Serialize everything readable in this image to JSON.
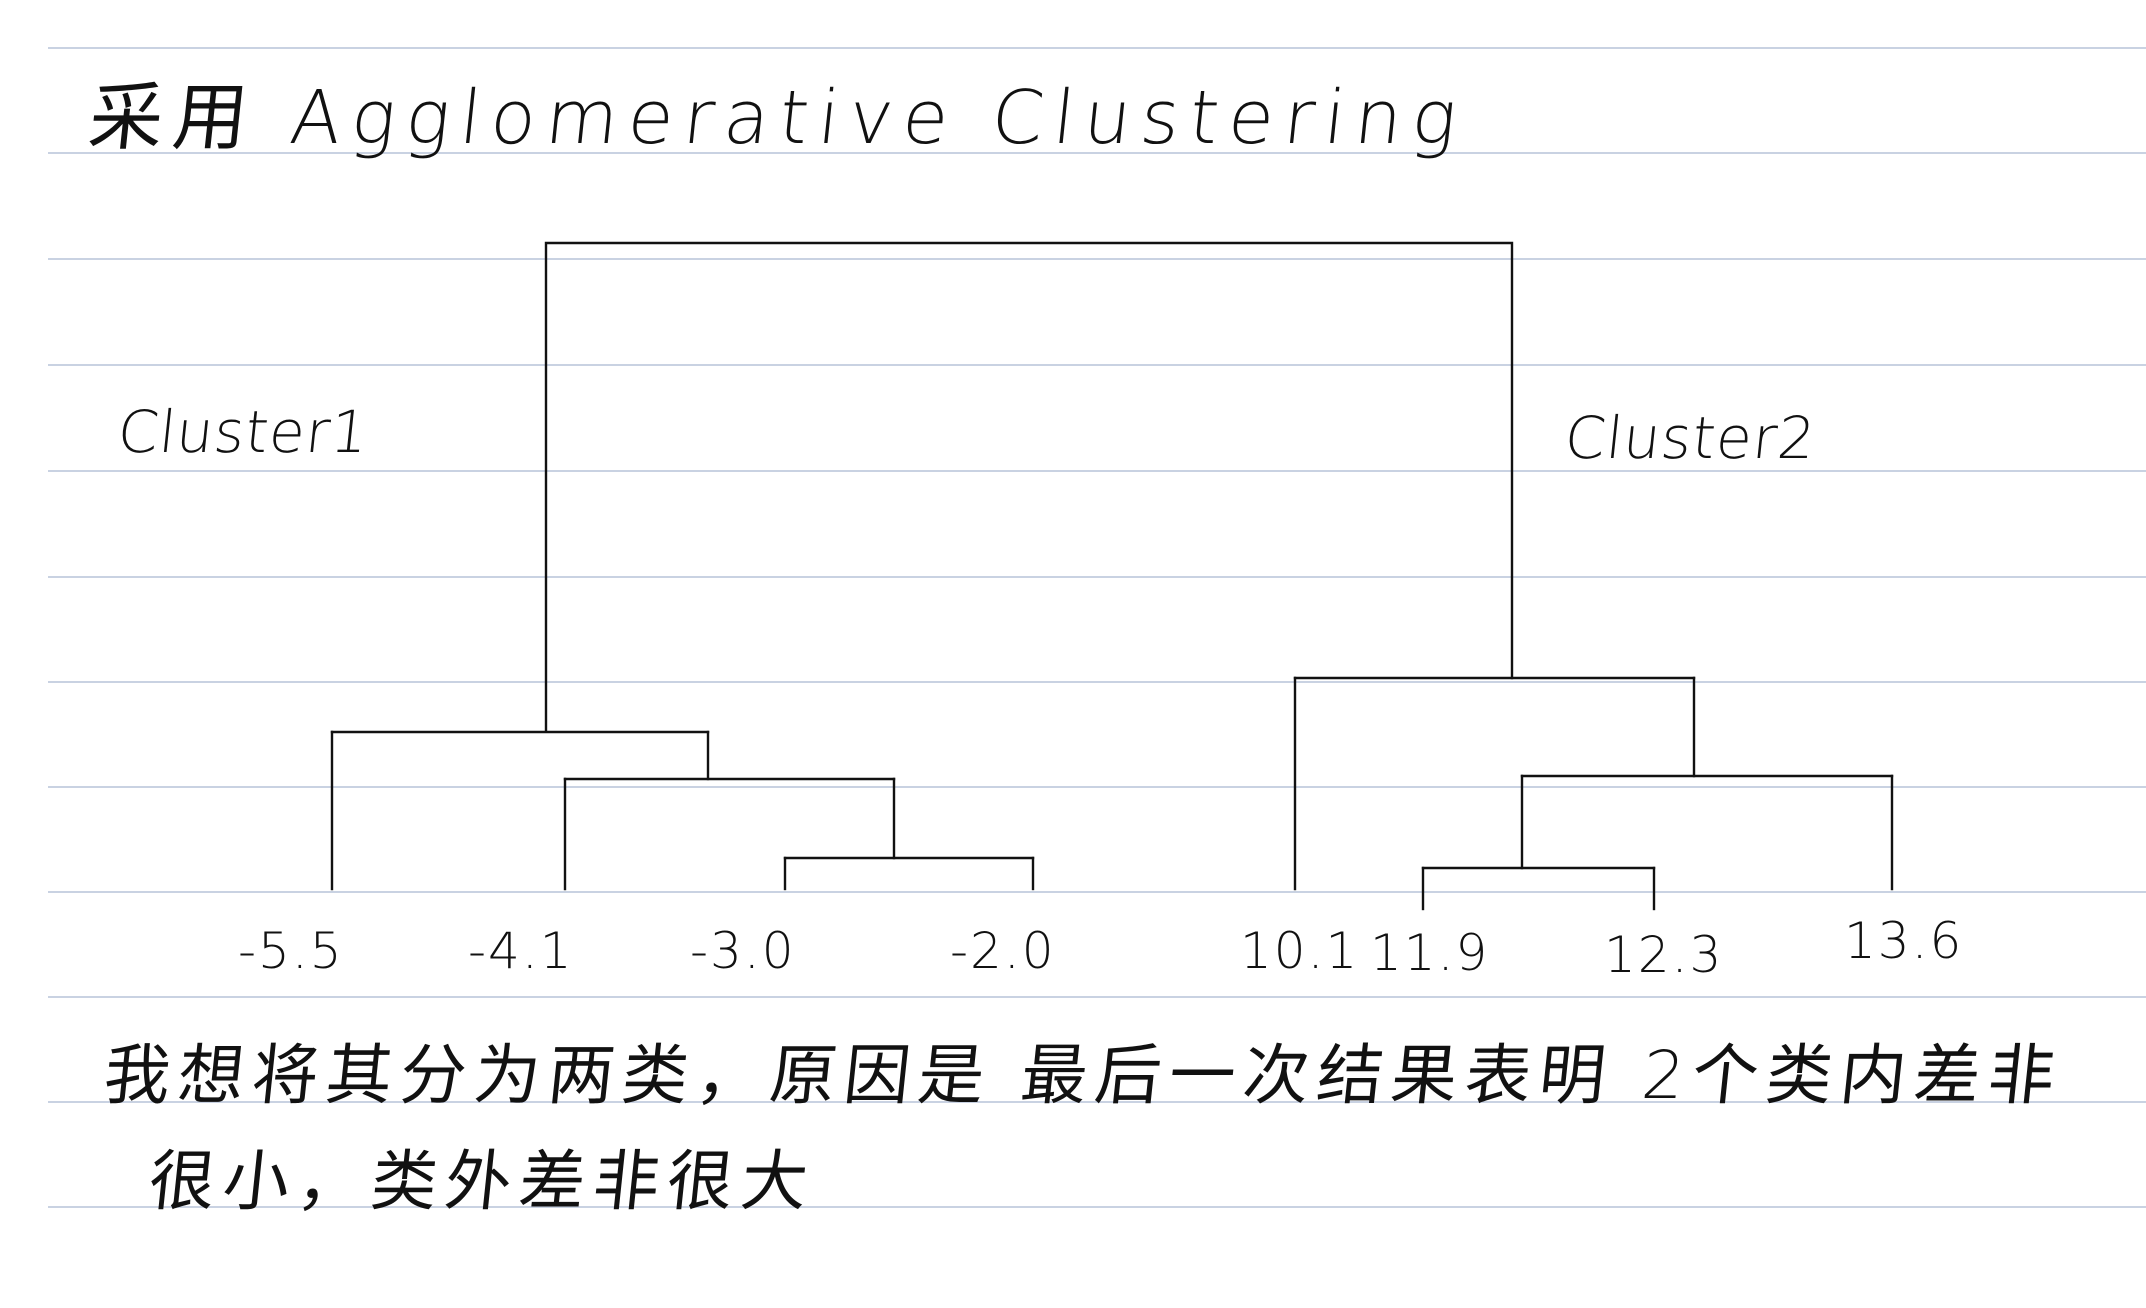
{
  "title": "采用 Agglomerative Clustering",
  "clusters": {
    "left_label": "Cluster1",
    "right_label": "Cluster2"
  },
  "leaves": [
    "-5.5",
    "-4.1",
    "-3.0",
    "-2.0",
    "10.1",
    "11.9",
    "12.3",
    "13.6"
  ],
  "note": {
    "line1": "我想将其分为两类，原因是 最后一次结果表明 2个类内差非",
    "line2": "很小，类外差非很大"
  },
  "colors": {
    "ink": "#111111",
    "rule": "#c9d2e2"
  }
}
